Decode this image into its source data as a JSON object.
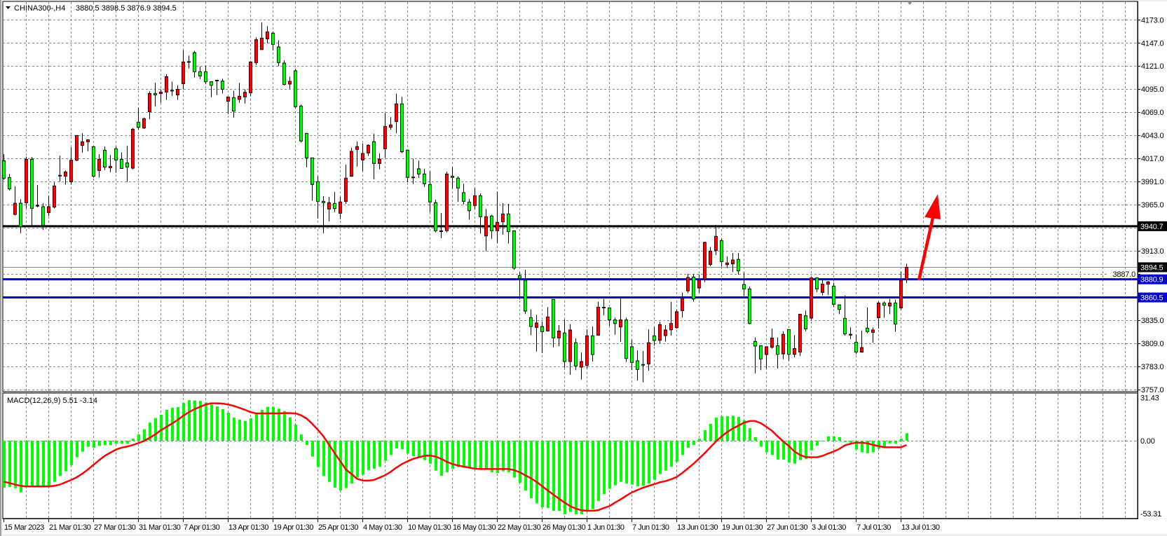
{
  "header": {
    "menu_icon": "triangle-down-icon",
    "symbol_timeframe": "CHINA300-,H4",
    "ohlc": "3880.5 3898.5 3876.9 3894.5"
  },
  "macd_label": "MACD(12,26,9) 5.51 -3.14",
  "colors": {
    "background": "#ffffff",
    "grid": "#778899",
    "bull_candle": "#ff0000",
    "bear_candle": "#00ff00",
    "macd_histogram": "#00ff00",
    "macd_signal": "#ff0000",
    "support_resistance": "#0000c8",
    "key_level": "#000000",
    "arrow": "#ff0000"
  },
  "chart_data": {
    "type": "candlestick",
    "symbol": "CHINA300-",
    "timeframe": "H4",
    "grid": true,
    "price_axis": {
      "ylim": [
        3757,
        4173
      ],
      "ticks": [
        "4173.0",
        "4147.0",
        "4121.0",
        "4095.0",
        "4069.0",
        "4043.0",
        "4017.0",
        "3991.0",
        "3965.0",
        "3913.0",
        "3887.0",
        "3835.0",
        "3809.0",
        "3783.0",
        "3757.0"
      ]
    },
    "time_axis": {
      "labels": [
        "15 Mar 2023",
        "21 Mar 01:30",
        "27 Mar 01:30",
        "31 Mar 01:30",
        "7 Apr 01:30",
        "13 Apr 01:30",
        "19 Apr 01:30",
        "25 Apr 01:30",
        "4 May 01:30",
        "10 May 01:30",
        "16 May 01:30",
        "22 May 01:30",
        "26 May 01:30",
        "1 Jun 01:30",
        "7 Jun 01:30",
        "13 Jun 01:30",
        "19 Jun 01:30",
        "27 Jun 01:30",
        "3 Jul 01:30",
        "7 Jul 01:30",
        "13 Jul 01:30"
      ]
    },
    "levels": [
      {
        "price": 3940.7,
        "label": "3940.7",
        "color": "#000000"
      },
      {
        "price": 3880.9,
        "label": "3880.9",
        "color": "#0000c8"
      },
      {
        "price": 3860.5,
        "label": "3860.5",
        "color": "#0000c8"
      }
    ],
    "bid": {
      "price": 3894.5,
      "label": "3894.5"
    },
    "annotation": {
      "type": "arrow",
      "direction": "up",
      "color": "#ff0000"
    },
    "candles_ohlc": [
      [
        4014.4,
        4021.8,
        3993.0,
        3994.7
      ],
      [
        3995.5,
        3999.4,
        3981.0,
        3982.8
      ],
      [
        3954.0,
        3985.5,
        3953.0,
        3966.5
      ],
      [
        3966.6,
        3971.0,
        3933.0,
        3940.3
      ],
      [
        3967.0,
        4019.0,
        3961.0,
        4016.0
      ],
      [
        4016.0,
        4018.6,
        3940.8,
        3960.8
      ],
      [
        3963.8,
        3987.0,
        3962.0,
        3963.8
      ],
      [
        3962.7,
        3966.6,
        3936.4,
        3941.6
      ],
      [
        3956.1,
        3975.0,
        3952.2,
        3962.7
      ],
      [
        3962.2,
        3990.0,
        3960.8,
        3986.0
      ],
      [
        3997.6,
        4020.0,
        3991.0,
        3997.6
      ],
      [
        3997.0,
        4003.4,
        3987.6,
        4001.8
      ],
      [
        3990.7,
        4029.6,
        3987.6,
        4015.0
      ],
      [
        4015.0,
        4043.3,
        4014.0,
        4042.8
      ],
      [
        4031.5,
        4045.4,
        4023.6,
        4035.7
      ],
      [
        4035.7,
        4038.6,
        4025.0,
        4038.0
      ],
      [
        4030.2,
        4031.0,
        3995.5,
        3997.0
      ],
      [
        4003.4,
        4021.8,
        3995.5,
        4016.0
      ],
      [
        4026.2,
        4030.4,
        4003.9,
        4007.3
      ],
      [
        4006.5,
        4020.7,
        4001.5,
        4008.1
      ],
      [
        4027.8,
        4030.2,
        4000.7,
        4015.2
      ],
      [
        4016.0,
        4023.9,
        4005.7,
        4005.7
      ],
      [
        4012.0,
        4031.0,
        3990.7,
        4007.3
      ],
      [
        4006.0,
        4051.2,
        4004.7,
        4049.9
      ],
      [
        4057.8,
        4074.3,
        4049.4,
        4052.0
      ],
      [
        4051.2,
        4063.0,
        4050.2,
        4061.7
      ],
      [
        4069.6,
        4092.7,
        4061.2,
        4090.1
      ],
      [
        4090.1,
        4102.2,
        4075.7,
        4088.5
      ],
      [
        4090.1,
        4094.8,
        4079.6,
        4091.7
      ],
      [
        4091.7,
        4111.7,
        4082.8,
        4109.0
      ],
      [
        4093.3,
        4103.3,
        4087.5,
        4093.3
      ],
      [
        4088.5,
        4099.3,
        4082.8,
        4094.8
      ],
      [
        4101.2,
        4138.7,
        4094.8,
        4125.6
      ],
      [
        4125.6,
        4132.7,
        4118.2,
        4125.6
      ],
      [
        4136.1,
        4138.0,
        4108.0,
        4114.6
      ],
      [
        4114.6,
        4120.3,
        4106.4,
        4109.8
      ],
      [
        4114.6,
        4121.7,
        4100.6,
        4103.3
      ],
      [
        4103.3,
        4103.3,
        4085.9,
        4099.3
      ],
      [
        4104.6,
        4104.6,
        4088.5,
        4104.6
      ],
      [
        4104.0,
        4106.7,
        4090.1,
        4094.8
      ],
      [
        4081.4,
        4086.2,
        4067.0,
        4086.2
      ],
      [
        4085.4,
        4093.3,
        4063.0,
        4070.4
      ],
      [
        4083.5,
        4102.0,
        4079.6,
        4087.0
      ],
      [
        4086.2,
        4094.8,
        4078.8,
        4091.4
      ],
      [
        4090.9,
        4126.1,
        4087.5,
        4125.6
      ],
      [
        4124.8,
        4153.2,
        4122.2,
        4150.6
      ],
      [
        4139.5,
        4170.3,
        4139.5,
        4152.4
      ],
      [
        4151.6,
        4165.8,
        4146.6,
        4159.5
      ],
      [
        4158.0,
        4159.5,
        4138.7,
        4145.3
      ],
      [
        4142.5,
        4150.0,
        4121.0,
        4124.9
      ],
      [
        4124.3,
        4127.4,
        4099.3,
        4100.2
      ],
      [
        4100.7,
        4109.0,
        4095.4,
        4103.8
      ],
      [
        4115.7,
        4117.8,
        4074.0,
        4075.2
      ],
      [
        4076.0,
        4077.6,
        4035.0,
        4036.6
      ],
      [
        4045.2,
        4045.2,
        4006.9,
        4017.6
      ],
      [
        4017.6,
        4017.6,
        3969.3,
        3987.7
      ],
      [
        3990.8,
        3996.9,
        3949.5,
        3968.5
      ],
      [
        3968.7,
        3974.5,
        3933.0,
        3967.2
      ],
      [
        3960.0,
        3973.7,
        3946.1,
        3967.2
      ],
      [
        3966.4,
        3979.3,
        3956.6,
        3960.6
      ],
      [
        3955.3,
        3973.7,
        3948.8,
        3968.0
      ],
      [
        3968.5,
        4010.0,
        3965.8,
        3994.8
      ],
      [
        3996.9,
        4029.2,
        3996.9,
        4025.0
      ],
      [
        4027.1,
        4036.0,
        4007.9,
        4030.3
      ],
      [
        4015.3,
        4033.7,
        4002.9,
        4022.6
      ],
      [
        4023.2,
        4032.9,
        4019.7,
        4031.8
      ],
      [
        4035.8,
        4044.7,
        3993.7,
        4011.3
      ],
      [
        4011.3,
        4022.6,
        4004.8,
        4016.1
      ],
      [
        4027.9,
        4067.9,
        4017.9,
        4053.1
      ],
      [
        4052.0,
        4063.4,
        4049.4,
        4054.7
      ],
      [
        4058.6,
        4089.7,
        4045.5,
        4078.4
      ],
      [
        4078.4,
        4086.3,
        4023.2,
        4024.5
      ],
      [
        4026.3,
        4026.3,
        3990.3,
        3995.6
      ],
      [
        3995.6,
        4016.6,
        3988.2,
        3995.6
      ],
      [
        4005.3,
        4014.5,
        3995.0,
        3999.5
      ],
      [
        3999.5,
        4005.3,
        3985.0,
        3988.5
      ],
      [
        3987.7,
        4002.6,
        3956.6,
        3968.0
      ],
      [
        3967.2,
        3970.6,
        3933.8,
        3935.6
      ],
      [
        3935.1,
        3955.6,
        3927.2,
        3935.1
      ],
      [
        3935.6,
        4002.1,
        3933.8,
        3999.5
      ],
      [
        3997.1,
        4006.9,
        3983.0,
        3995.6
      ],
      [
        3994.8,
        3996.9,
        3968.0,
        3983.7
      ],
      [
        3978.5,
        3988.5,
        3965.3,
        3968.7
      ],
      [
        3967.9,
        3971.4,
        3948.2,
        3958.2
      ],
      [
        3964.0,
        3983.7,
        3960.0,
        3975.0
      ],
      [
        3975.0,
        3977.7,
        3932.5,
        3951.4
      ],
      [
        3929.8,
        3960.0,
        3912.7,
        3951.4
      ],
      [
        3952.2,
        3953.5,
        3926.7,
        3935.6
      ],
      [
        3935.6,
        3979.8,
        3922.0,
        3945.1
      ],
      [
        3945.6,
        3966.6,
        3931.1,
        3954.5
      ],
      [
        3954.5,
        3965.8,
        3921.4,
        3934.6
      ],
      [
        3935.6,
        3935.6,
        3891.7,
        3893.5
      ],
      [
        3885.1,
        3889.0,
        3858.3,
        3882.0
      ],
      [
        3879.9,
        3891.7,
        3841.8,
        3845.2
      ],
      [
        3837.8,
        3847.0,
        3818.1,
        3827.8
      ],
      [
        3826.8,
        3841.0,
        3799.7,
        3831.8
      ],
      [
        3827.8,
        3833.0,
        3797.8,
        3822.0
      ],
      [
        3822.8,
        3849.6,
        3822.8,
        3838.6
      ],
      [
        3858.3,
        3858.3,
        3804.4,
        3815.0
      ],
      [
        3815.0,
        3829.4,
        3805.7,
        3822.8
      ],
      [
        3820.5,
        3835.7,
        3781.3,
        3788.4
      ],
      [
        3788.4,
        3830.5,
        3773.4,
        3823.9
      ],
      [
        3809.5,
        3814.2,
        3778.7,
        3783.4
      ],
      [
        3782.1,
        3798.4,
        3768.2,
        3788.4
      ],
      [
        3784.0,
        3824.7,
        3780.5,
        3817.3
      ],
      [
        3817.3,
        3827.8,
        3788.4,
        3796.3
      ],
      [
        3818.1,
        3855.7,
        3818.1,
        3849.6
      ],
      [
        3849.1,
        3858.8,
        3840.4,
        3849.1
      ],
      [
        3848.8,
        3848.8,
        3828.6,
        3835.2
      ],
      [
        3835.2,
        3837.8,
        3818.6,
        3831.2
      ],
      [
        3827.3,
        3861.5,
        3810.7,
        3835.2
      ],
      [
        3835.2,
        3837.8,
        3787.9,
        3791.8
      ],
      [
        3805.0,
        3812.9,
        3778.7,
        3787.4
      ],
      [
        3789.2,
        3801.0,
        3766.9,
        3779.5
      ],
      [
        3784.7,
        3800.3,
        3765.0,
        3784.7
      ],
      [
        3785.8,
        3824.7,
        3778.2,
        3809.5
      ],
      [
        3817.3,
        3827.3,
        3806.2,
        3812.1
      ],
      [
        3812.3,
        3833.1,
        3808.9,
        3829.9
      ],
      [
        3817.6,
        3829.4,
        3811.0,
        3823.9
      ],
      [
        3824.1,
        3855.4,
        3817.6,
        3831.2
      ],
      [
        3826.5,
        3846.5,
        3825.4,
        3844.4
      ],
      [
        3845.7,
        3865.9,
        3838.3,
        3859.6
      ],
      [
        3868.0,
        3887.0,
        3865.4,
        3883.0
      ],
      [
        3883.5,
        3887.0,
        3855.7,
        3858.8
      ],
      [
        3871.2,
        3886.4,
        3865.9,
        3879.9
      ],
      [
        3881.2,
        3923.2,
        3877.8,
        3922.4
      ],
      [
        3897.7,
        3917.2,
        3895.6,
        3912.7
      ],
      [
        3913.5,
        3942.2,
        3908.0,
        3929.3
      ],
      [
        3924.6,
        3926.4,
        3895.1,
        3900.9
      ],
      [
        3897.5,
        3906.7,
        3893.5,
        3899.3
      ],
      [
        3898.3,
        3910.6,
        3889.0,
        3902.7
      ],
      [
        3903.3,
        3910.6,
        3886.4,
        3890.4
      ],
      [
        3875.1,
        3888.3,
        3862.0,
        3870.1
      ],
      [
        3870.1,
        3872.8,
        3830.4,
        3831.2
      ],
      [
        3811.0,
        3815.5,
        3775.3,
        3805.8
      ],
      [
        3806.3,
        3806.3,
        3778.7,
        3791.3
      ],
      [
        3796.3,
        3805.0,
        3780.5,
        3805.0
      ],
      [
        3804.4,
        3825.4,
        3803.0,
        3814.9
      ],
      [
        3806.2,
        3815.4,
        3780.5,
        3796.5
      ],
      [
        3797.0,
        3822.5,
        3791.0,
        3818.9
      ],
      [
        3824.4,
        3824.4,
        3789.2,
        3796.5
      ],
      [
        3796.5,
        3818.1,
        3793.1,
        3803.0
      ],
      [
        3799.1,
        3841.7,
        3794.4,
        3841.7
      ],
      [
        3839.9,
        3845.7,
        3822.5,
        3825.2
      ],
      [
        3837.3,
        3883.3,
        3835.2,
        3882.5
      ],
      [
        3882.5,
        3883.3,
        3866.7,
        3870.1
      ],
      [
        3866.2,
        3879.9,
        3862.8,
        3875.6
      ],
      [
        3875.4,
        3879.1,
        3863.6,
        3878.0
      ],
      [
        3873.3,
        3877.2,
        3849.6,
        3852.8
      ],
      [
        3852.2,
        3852.2,
        3841.7,
        3847.0
      ],
      [
        3837.0,
        3862.8,
        3817.6,
        3819.4
      ],
      [
        3818.6,
        3826.7,
        3813.4,
        3818.6
      ],
      [
        3810.2,
        3818.9,
        3796.5,
        3799.1
      ],
      [
        3799.1,
        3823.3,
        3798.4,
        3804.1
      ],
      [
        3826.0,
        3849.1,
        3820.2,
        3822.0
      ],
      [
        3821.2,
        3826.5,
        3809.6,
        3823.9
      ],
      [
        3837.7,
        3856.2,
        3825.4,
        3854.3
      ],
      [
        3854.3,
        3856.1,
        3837.7,
        3851.7
      ],
      [
        3850.9,
        3858.8,
        3841.7,
        3854.3
      ],
      [
        3854.3,
        3858.2,
        3822.0,
        3830.6
      ],
      [
        3848.8,
        3889.5,
        3846.9,
        3879.8
      ],
      [
        3880.5,
        3898.5,
        3876.9,
        3894.5
      ]
    ],
    "macd": {
      "params": [
        12,
        26,
        9
      ],
      "ylim": [
        -53.31,
        31.43
      ],
      "tick_labels": [
        "31.43",
        "0.00",
        "-53.31"
      ],
      "main": [
        -34.4,
        -33.8,
        -34.7,
        -37.8,
        -33,
        -33,
        -33,
        -33,
        -33,
        -30.1,
        -25.8,
        -22.4,
        -17.9,
        -12.1,
        -8,
        -4.4,
        -5.1,
        -3.8,
        -3.2,
        -3.2,
        -2.2,
        -2.2,
        -2.2,
        1.5,
        4.6,
        8.4,
        13.2,
        16.6,
        19,
        22.6,
        24.1,
        24.6,
        27.7,
        29.7,
        29.4,
        29.1,
        28,
        26.5,
        25.1,
        23.1,
        20.5,
        16.9,
        15.4,
        14.4,
        16.4,
        20,
        22.6,
        24.8,
        24.8,
        23.4,
        21.7,
        17.1,
        11.8,
        4.6,
        -3.1,
        -11.6,
        -19.3,
        -25.8,
        -30.1,
        -34.4,
        -36.4,
        -34.7,
        -31.3,
        -27,
        -24.8,
        -21.4,
        -20.5,
        -19,
        -14.7,
        -10.4,
        -5.6,
        -6.2,
        -9.4,
        -11.3,
        -12.5,
        -14.2,
        -16.8,
        -21.9,
        -25.6,
        -23.1,
        -20.5,
        -19.3,
        -19.7,
        -20.2,
        -20.5,
        -21,
        -21,
        -23.1,
        -23.6,
        -22.4,
        -23.1,
        -27,
        -30.8,
        -36.4,
        -42,
        -45.8,
        -48.7,
        -49.2,
        -51.3,
        -51.3,
        -53.8,
        -52.1,
        -53.8,
        -53.8,
        -51.8,
        -50.1,
        -44.1,
        -39,
        -35.2,
        -32.6,
        -30.1,
        -31.3,
        -32.1,
        -33.3,
        -33,
        -31.3,
        -28.7,
        -24.4,
        -21.9,
        -19,
        -15.4,
        -10.4,
        -5.1,
        -3.1,
        1.5,
        7.7,
        12.3,
        16.9,
        17.9,
        17.9,
        18.3,
        17.4,
        14.9,
        9.2,
        2.6,
        -4.4,
        -8.5,
        -10.4,
        -13.8,
        -13.8,
        -15.9,
        -16.8,
        -14.2,
        -13.3,
        -7,
        -3.6,
        0,
        3.2,
        3.2,
        2.6,
        -0.9,
        -1.4,
        -6.5,
        -8.5,
        -9.1,
        -8.5,
        -6,
        -4.3,
        -1.9,
        -2.2,
        1.5,
        5.51
      ],
      "signal": [
        -30.1,
        -30.9,
        -32.1,
        -33,
        -33.5,
        -33.5,
        -33.5,
        -33.5,
        -33.5,
        -33,
        -32.1,
        -30.4,
        -28.7,
        -26.7,
        -24.1,
        -21,
        -17.6,
        -14.2,
        -11.1,
        -8.7,
        -6.5,
        -5.1,
        -4.3,
        -3.2,
        -1.7,
        -0.2,
        2.1,
        4.6,
        7.7,
        10.1,
        12.6,
        15.2,
        18.3,
        20.9,
        23.1,
        24.8,
        26.5,
        27.4,
        27.4,
        27.2,
        26.5,
        25.5,
        24.1,
        22.6,
        20.9,
        20,
        20,
        20,
        20,
        20,
        20.2,
        20.2,
        20,
        18.6,
        16.2,
        12.3,
        8,
        3.2,
        -3.1,
        -9.1,
        -15,
        -21,
        -24.4,
        -27.9,
        -29.1,
        -29.2,
        -28.7,
        -27,
        -25.3,
        -22.7,
        -19.7,
        -17.1,
        -15,
        -13.3,
        -12.1,
        -11.1,
        -10.8,
        -11.6,
        -13.3,
        -15.4,
        -17.1,
        -18.1,
        -19,
        -19.7,
        -20.5,
        -20.7,
        -20.7,
        -20.7,
        -20.7,
        -20.7,
        -20.7,
        -21.5,
        -23.1,
        -25.3,
        -27.5,
        -30.1,
        -33.3,
        -36.4,
        -39.5,
        -42.4,
        -45.3,
        -47.9,
        -49.7,
        -50.9,
        -51.3,
        -51.3,
        -50.9,
        -49.2,
        -47.9,
        -45.3,
        -42.9,
        -40.3,
        -37.8,
        -36.1,
        -34.4,
        -33,
        -31.8,
        -30.4,
        -29.6,
        -28.2,
        -26.5,
        -23.6,
        -20.2,
        -16.8,
        -13,
        -9.1,
        -4.8,
        -0.5,
        3.2,
        6.3,
        8.9,
        11,
        13.2,
        14.4,
        14.4,
        12.8,
        10.1,
        7.2,
        3.2,
        -0.5,
        -3.9,
        -7.9,
        -10.4,
        -12,
        -12.1,
        -12.1,
        -11.1,
        -9.4,
        -7.9,
        -6,
        -3.4,
        -2.2,
        -1.4,
        -1.4,
        -1.9,
        -3.1,
        -3.9,
        -4.8,
        -4.8,
        -4.8,
        -4.8,
        -3.14
      ]
    }
  }
}
